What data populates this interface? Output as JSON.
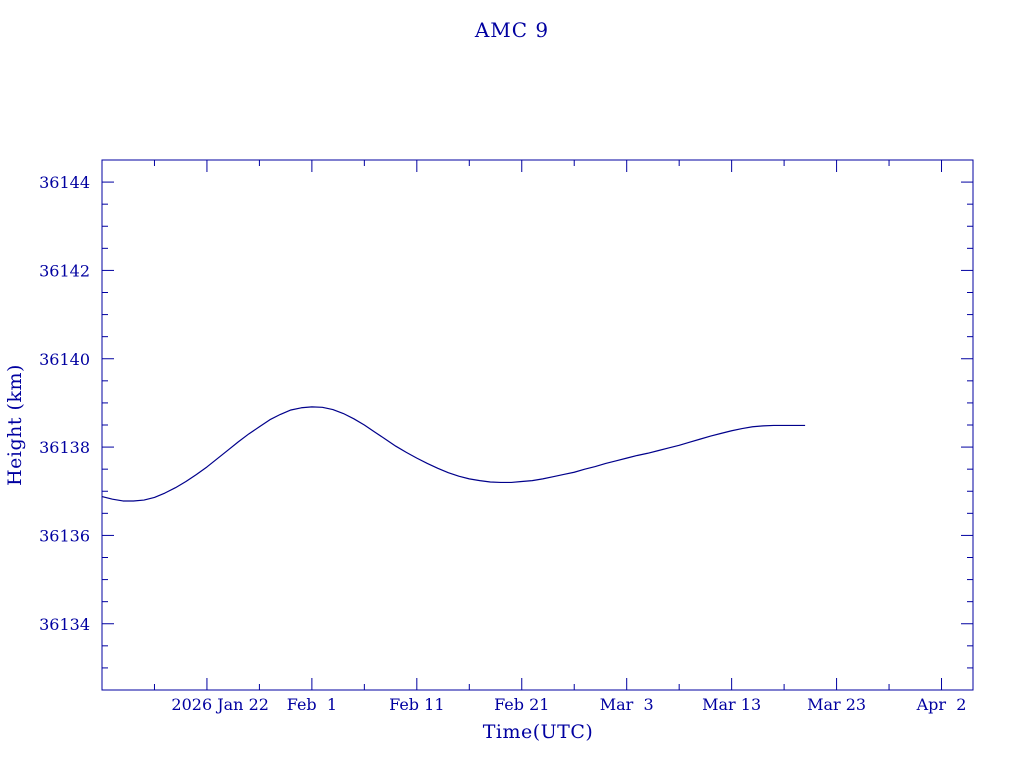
{
  "chart_data": {
    "type": "line",
    "title": "AMC 9",
    "xlabel": "Time(UTC)",
    "ylabel": "Height (km)",
    "color": "#00008b",
    "axis_color": "#0000a0",
    "grid": false,
    "xlim": [
      "2026-01-12",
      "2026-04-05"
    ],
    "ylim": [
      36132.5,
      36144.5
    ],
    "x_ticks": [
      {
        "date": "2026-01-22",
        "label": "2026 Jan 22"
      },
      {
        "date": "2026-02-01",
        "label": "Feb  1"
      },
      {
        "date": "2026-02-11",
        "label": "Feb 11"
      },
      {
        "date": "2026-02-21",
        "label": "Feb 21"
      },
      {
        "date": "2026-03-03",
        "label": "Mar  3"
      },
      {
        "date": "2026-03-13",
        "label": "Mar 13"
      },
      {
        "date": "2026-03-23",
        "label": "Mar 23"
      },
      {
        "date": "2026-04-02",
        "label": "Apr  2"
      }
    ],
    "y_ticks": [
      36134,
      36136,
      36138,
      36140,
      36142,
      36144
    ],
    "series": [
      {
        "x": [
          "2026-01-12",
          "2026-01-13",
          "2026-01-14",
          "2026-01-15",
          "2026-01-16",
          "2026-01-17",
          "2026-01-18",
          "2026-01-19",
          "2026-01-20",
          "2026-01-21",
          "2026-01-22",
          "2026-01-23",
          "2026-01-24",
          "2026-01-25",
          "2026-01-26",
          "2026-01-27",
          "2026-01-28",
          "2026-01-29",
          "2026-01-30",
          "2026-01-31",
          "2026-02-01",
          "2026-02-02",
          "2026-02-03",
          "2026-02-04",
          "2026-02-05",
          "2026-02-06",
          "2026-02-07",
          "2026-02-08",
          "2026-02-09",
          "2026-02-10",
          "2026-02-11",
          "2026-02-12",
          "2026-02-13",
          "2026-02-14",
          "2026-02-15",
          "2026-02-16",
          "2026-02-17",
          "2026-02-18",
          "2026-02-19",
          "2026-02-20",
          "2026-02-21",
          "2026-02-22",
          "2026-02-23",
          "2026-02-24",
          "2026-02-25",
          "2026-02-26",
          "2026-02-27",
          "2026-02-28",
          "2026-03-01",
          "2026-03-02",
          "2026-03-03",
          "2026-03-04",
          "2026-03-05",
          "2026-03-06",
          "2026-03-07",
          "2026-03-08",
          "2026-03-09",
          "2026-03-10",
          "2026-03-11",
          "2026-03-12",
          "2026-03-13",
          "2026-03-14",
          "2026-03-15",
          "2026-03-16",
          "2026-03-17",
          "2026-03-18",
          "2026-03-19",
          "2026-03-20"
        ],
        "y": [
          36136.88,
          36136.82,
          36136.78,
          36136.78,
          36136.8,
          36136.86,
          36136.96,
          36137.08,
          36137.22,
          36137.38,
          36137.55,
          36137.74,
          36137.93,
          36138.12,
          36138.3,
          36138.46,
          36138.62,
          36138.74,
          36138.84,
          36138.89,
          36138.91,
          36138.9,
          36138.85,
          36138.76,
          36138.64,
          36138.5,
          36138.34,
          36138.18,
          36138.02,
          36137.88,
          36137.75,
          36137.63,
          36137.52,
          36137.42,
          36137.34,
          36137.28,
          36137.24,
          36137.21,
          36137.2,
          36137.2,
          36137.22,
          36137.24,
          36137.28,
          36137.33,
          36137.38,
          36137.43,
          36137.5,
          36137.56,
          36137.63,
          36137.69,
          36137.75,
          36137.81,
          36137.86,
          36137.92,
          36137.98,
          36138.04,
          36138.11,
          36138.18,
          36138.25,
          36138.31,
          36138.37,
          36138.42,
          36138.46,
          36138.48,
          36138.49,
          36138.49,
          36138.49,
          36138.49
        ]
      }
    ]
  }
}
